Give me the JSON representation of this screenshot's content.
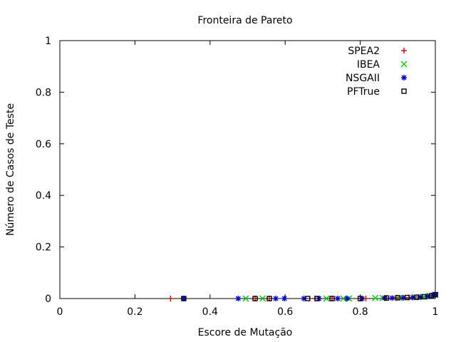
{
  "chart_data": {
    "type": "scatter",
    "title": "Fronteira de Pareto",
    "xlabel": "Escore de Mutação",
    "ylabel": "Número de Casos de Teste",
    "xlim": [
      0,
      1
    ],
    "ylim": [
      0,
      1
    ],
    "xticks": [
      "0",
      "0.2",
      "0.4",
      "0.6",
      "0.8",
      "1"
    ],
    "yticks": [
      "0",
      "0.2",
      "0.4",
      "0.6",
      "0.8",
      "1"
    ],
    "grid": false,
    "legend_position": "top-right",
    "series": [
      {
        "name": "SPEA2",
        "marker": "plus",
        "color": "#cc0000",
        "points": [
          [
            0.295,
            0.0
          ],
          [
            0.52,
            0.0
          ],
          [
            0.558,
            0.0
          ],
          [
            0.68,
            0.0
          ],
          [
            0.725,
            0.0
          ],
          [
            0.8,
            0.0
          ],
          [
            0.815,
            0.0
          ],
          [
            0.87,
            0.002
          ],
          [
            0.895,
            0.003
          ],
          [
            0.93,
            0.004
          ],
          [
            0.955,
            0.006
          ],
          [
            0.975,
            0.008
          ],
          [
            0.99,
            0.012
          ],
          [
            1.0,
            0.015
          ]
        ]
      },
      {
        "name": "IBEA",
        "marker": "cross",
        "color": "#00cc00",
        "points": [
          [
            0.495,
            0.0
          ],
          [
            0.54,
            0.0
          ],
          [
            0.71,
            0.0
          ],
          [
            0.755,
            0.0
          ],
          [
            0.77,
            0.0
          ],
          [
            0.84,
            0.002
          ],
          [
            0.86,
            0.002
          ],
          [
            0.905,
            0.003
          ],
          [
            0.945,
            0.005
          ],
          [
            0.97,
            0.007
          ],
          [
            0.985,
            0.01
          ],
          [
            1.0,
            0.014
          ]
        ]
      },
      {
        "name": "NSGAII",
        "marker": "star",
        "color": "#0000cc",
        "points": [
          [
            0.33,
            0.0
          ],
          [
            0.475,
            0.0
          ],
          [
            0.575,
            0.0
          ],
          [
            0.598,
            0.0
          ],
          [
            0.65,
            0.0
          ],
          [
            0.69,
            0.0
          ],
          [
            0.74,
            0.0
          ],
          [
            0.765,
            0.0
          ],
          [
            0.805,
            0.0
          ],
          [
            0.865,
            0.002
          ],
          [
            0.885,
            0.002
          ],
          [
            0.915,
            0.003
          ],
          [
            0.94,
            0.004
          ],
          [
            0.96,
            0.006
          ],
          [
            0.98,
            0.009
          ],
          [
            0.995,
            0.013
          ],
          [
            1.0,
            0.015
          ]
        ]
      },
      {
        "name": "PFTrue",
        "marker": "square",
        "color": "#000000",
        "points": [
          [
            0.33,
            0.0
          ],
          [
            0.52,
            0.0
          ],
          [
            0.558,
            0.0
          ],
          [
            0.66,
            0.0
          ],
          [
            0.685,
            0.0
          ],
          [
            0.725,
            0.0
          ],
          [
            0.8,
            0.0
          ],
          [
            0.87,
            0.002
          ],
          [
            0.9,
            0.003
          ],
          [
            0.925,
            0.004
          ],
          [
            0.95,
            0.005
          ],
          [
            0.97,
            0.007
          ],
          [
            0.99,
            0.011
          ],
          [
            1.0,
            0.015
          ]
        ]
      }
    ]
  }
}
